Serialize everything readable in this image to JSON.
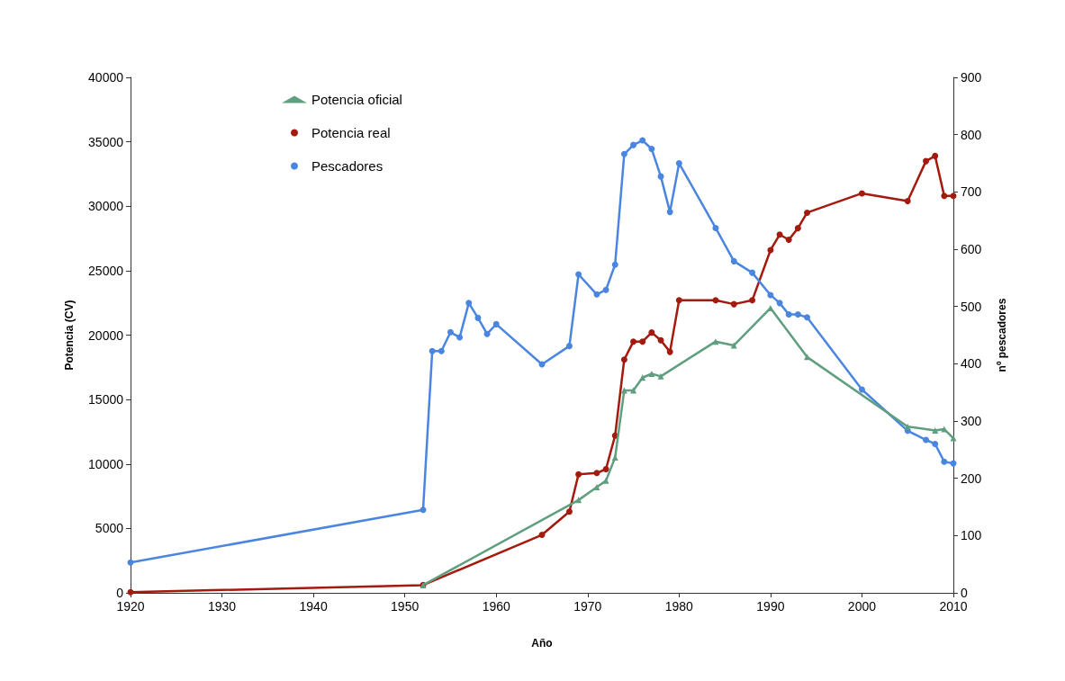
{
  "chart_data": {
    "type": "line",
    "xlabel": "Año",
    "ylabel": "Potencia (CV)",
    "y2label": "nº pescadores",
    "xlim": [
      1920,
      2010
    ],
    "xticks": [
      1920,
      1930,
      1940,
      1950,
      1960,
      1970,
      1980,
      1990,
      2000,
      2010
    ],
    "ylim": [
      0,
      40000
    ],
    "yticks": [
      0,
      5000,
      10000,
      15000,
      20000,
      25000,
      30000,
      35000,
      40000
    ],
    "y2lim": [
      0,
      900
    ],
    "y2ticks": [
      0,
      100,
      200,
      300,
      400,
      500,
      600,
      700,
      800,
      900
    ],
    "grid": false,
    "legend": "top left",
    "line_style": "solid",
    "series": [
      {
        "name": "Potencia oficial",
        "color": "#5f9e7f",
        "marker": "triangle",
        "x": [
          1952,
          1969,
          1971,
          1972,
          1973,
          1974,
          1975,
          1976,
          1977,
          1978,
          1984,
          1986,
          1990,
          1994,
          2005,
          2008,
          2009,
          2010
        ],
        "values": [
          600,
          7200,
          8200,
          8700,
          10500,
          15700,
          15700,
          16700,
          17000,
          16800,
          19500,
          19200,
          22100,
          18300,
          12900,
          12600,
          12700,
          12000
        ]
      },
      {
        "name": "Potencia real",
        "color": "#a31a0e",
        "marker": "circle",
        "x": [
          1920,
          1952,
          1965,
          1968,
          1969,
          1971,
          1972,
          1973,
          1974,
          1975,
          1976,
          1977,
          1978,
          1979,
          1980,
          1984,
          1986,
          1988,
          1990,
          1991,
          1992,
          1993,
          1994,
          2000,
          2005,
          2007,
          2008,
          2009,
          2010
        ],
        "values": [
          50,
          600,
          4500,
          6300,
          9200,
          9300,
          9600,
          12200,
          18100,
          19500,
          19500,
          20200,
          19600,
          18700,
          22700,
          22700,
          22400,
          22700,
          26600,
          27800,
          27400,
          28300,
          29500,
          31000,
          30400,
          33500,
          33900,
          30800,
          30800
        ]
      },
      {
        "name": "Pescadores",
        "color": "#4a86e0",
        "marker": "circle",
        "axis": "y2",
        "x": [
          1920,
          1952,
          1953,
          1954,
          1955,
          1956,
          1957,
          1958,
          1959,
          1960,
          1965,
          1968,
          1969,
          1971,
          1972,
          1973,
          1974,
          1975,
          1976,
          1977,
          1978,
          1979,
          1980,
          1984,
          1986,
          1988,
          1990,
          1991,
          1992,
          1993,
          1994,
          2000,
          2005,
          2007,
          2008,
          2009,
          2010
        ],
        "values": [
          53,
          145,
          422,
          422,
          455,
          446,
          506,
          480,
          452,
          469,
          399,
          431,
          556,
          521,
          529,
          573,
          766,
          782,
          790,
          775,
          727,
          665,
          750,
          637,
          579,
          559,
          520,
          506,
          486,
          486,
          481,
          355,
          283,
          267,
          260,
          229,
          226
        ]
      }
    ]
  }
}
